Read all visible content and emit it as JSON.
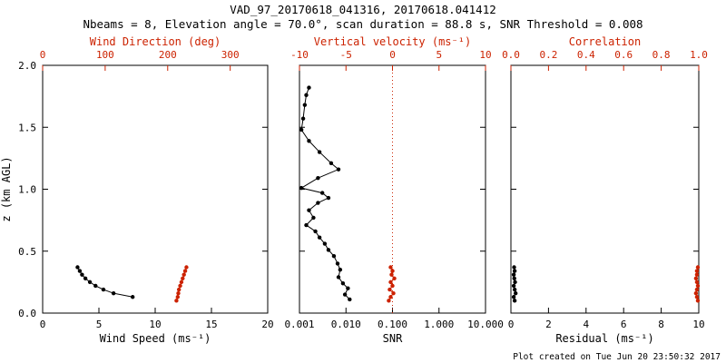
{
  "header": {
    "title": "VAD_97_20170618_041316, 20170618.041412",
    "subtitle": "Nbeams = 8, Elevation angle = 70.0°, scan duration = 88.8 s, SNR Threshold = 0.008"
  },
  "footer": {
    "created": "Plot created on Tue Jun 20 23:50:32 2017"
  },
  "colors": {
    "foreground": "#000000",
    "accent": "#cc2200",
    "background": "#ffffff"
  },
  "chart_data": [
    {
      "type": "scatter",
      "name": "wind-speed-direction-profile",
      "ylabel": "z (km AGL)",
      "ylim": [
        0.0,
        2.0
      ],
      "yticks": [
        0.0,
        0.5,
        1.0,
        1.5,
        2.0
      ],
      "ytick_labels": [
        "0.0",
        "0.5",
        "1.0",
        "1.5",
        "2.0"
      ],
      "show_ytick_labels": true,
      "bottom_axis": {
        "label": "Wind Speed (ms⁻¹)",
        "lim": [
          0,
          20
        ],
        "scale": "linear",
        "ticks": [
          0,
          5,
          10,
          15,
          20
        ],
        "tick_labels": [
          "0",
          "5",
          "10",
          "15",
          "20"
        ],
        "color": "#000000"
      },
      "top_axis": {
        "label": "Wind Direction (deg)",
        "lim": [
          0,
          360
        ],
        "scale": "linear",
        "ticks": [
          0,
          100,
          200,
          300
        ],
        "tick_labels": [
          "0",
          "100",
          "200",
          "300"
        ],
        "color": "#cc2200"
      },
      "series": [
        {
          "name": "wind-speed",
          "axis": "bottom",
          "color": "#000000",
          "points": [
            [
              8.0,
              0.13
            ],
            [
              6.3,
              0.16
            ],
            [
              5.4,
              0.19
            ],
            [
              4.7,
              0.22
            ],
            [
              4.2,
              0.25
            ],
            [
              3.8,
              0.28
            ],
            [
              3.5,
              0.31
            ],
            [
              3.3,
              0.34
            ],
            [
              3.1,
              0.37
            ]
          ]
        },
        {
          "name": "wind-direction",
          "axis": "top",
          "color": "#cc2200",
          "points": [
            [
              214,
              0.1
            ],
            [
              216,
              0.13
            ],
            [
              217,
              0.16
            ],
            [
              218,
              0.19
            ],
            [
              220,
              0.22
            ],
            [
              222,
              0.25
            ],
            [
              224,
              0.28
            ],
            [
              226,
              0.31
            ],
            [
              228,
              0.34
            ],
            [
              230,
              0.37
            ]
          ]
        }
      ]
    },
    {
      "type": "scatter",
      "name": "snr-vertical-velocity-profile",
      "ylabel": "",
      "ylim": [
        0.0,
        2.0
      ],
      "yticks": [
        0.0,
        0.5,
        1.0,
        1.5,
        2.0
      ],
      "ytick_labels": [
        "0.0",
        "0.5",
        "1.0",
        "1.5",
        "2.0"
      ],
      "show_ytick_labels": false,
      "bottom_axis": {
        "label": "SNR",
        "lim": [
          0.001,
          10.0
        ],
        "scale": "log",
        "ticks": [
          0.001,
          0.01,
          0.1,
          1.0,
          10.0
        ],
        "tick_labels": [
          "0.001",
          "0.010",
          "0.100",
          "1.000",
          "10.000"
        ],
        "color": "#000000"
      },
      "top_axis": {
        "label": "Vertical velocity (ms⁻¹)",
        "lim": [
          -10,
          10
        ],
        "scale": "linear",
        "ticks": [
          -10,
          -5,
          0,
          5,
          10
        ],
        "tick_labels": [
          "-10",
          "-5",
          "0",
          "5",
          "10"
        ],
        "color": "#cc2200"
      },
      "refline": {
        "axis": "top",
        "value": 0.0,
        "style": "dotted",
        "color": "#cc2200"
      },
      "series": [
        {
          "name": "snr",
          "axis": "bottom",
          "color": "#000000",
          "points": [
            [
              0.012,
              0.11
            ],
            [
              0.0095,
              0.15
            ],
            [
              0.011,
              0.2
            ],
            [
              0.0086,
              0.24
            ],
            [
              0.0069,
              0.29
            ],
            [
              0.0075,
              0.35
            ],
            [
              0.0066,
              0.4
            ],
            [
              0.0055,
              0.46
            ],
            [
              0.0042,
              0.51
            ],
            [
              0.0035,
              0.56
            ],
            [
              0.0027,
              0.61
            ],
            [
              0.0022,
              0.66
            ],
            [
              0.0014,
              0.71
            ],
            [
              0.002,
              0.77
            ],
            [
              0.0016,
              0.83
            ],
            [
              0.0025,
              0.89
            ],
            [
              0.0042,
              0.93
            ],
            [
              0.0031,
              0.97
            ],
            [
              0.0011,
              1.01
            ],
            [
              0.0025,
              1.09
            ],
            [
              0.0069,
              1.16
            ],
            [
              0.0048,
              1.21
            ],
            [
              0.0027,
              1.3
            ],
            [
              0.0016,
              1.39
            ],
            [
              0.0011,
              1.48
            ],
            [
              0.0012,
              1.57
            ],
            [
              0.0013,
              1.68
            ],
            [
              0.0014,
              1.76
            ],
            [
              0.0016,
              1.82
            ]
          ]
        },
        {
          "name": "vertical-velocity",
          "axis": "top",
          "color": "#cc2200",
          "points": [
            [
              -0.4,
              0.1
            ],
            [
              -0.2,
              0.13
            ],
            [
              0.1,
              0.16
            ],
            [
              -0.3,
              0.19
            ],
            [
              0.0,
              0.22
            ],
            [
              -0.2,
              0.25
            ],
            [
              0.2,
              0.28
            ],
            [
              -0.1,
              0.31
            ],
            [
              0.0,
              0.34
            ],
            [
              -0.2,
              0.37
            ]
          ]
        }
      ]
    },
    {
      "type": "scatter",
      "name": "residual-correlation-profile",
      "ylabel": "",
      "ylim": [
        0.0,
        2.0
      ],
      "yticks": [
        0.0,
        0.5,
        1.0,
        1.5,
        2.0
      ],
      "ytick_labels": [
        "0.0",
        "0.5",
        "1.0",
        "1.5",
        "2.0"
      ],
      "show_ytick_labels": false,
      "bottom_axis": {
        "label": "Residual (ms⁻¹)",
        "lim": [
          0,
          10
        ],
        "scale": "linear",
        "ticks": [
          0,
          2,
          4,
          6,
          8,
          10
        ],
        "tick_labels": [
          "0",
          "2",
          "4",
          "6",
          "8",
          "10"
        ],
        "color": "#000000"
      },
      "top_axis": {
        "label": "Correlation",
        "lim": [
          0.0,
          1.0
        ],
        "scale": "linear",
        "ticks": [
          0.0,
          0.2,
          0.4,
          0.6,
          0.8,
          1.0
        ],
        "tick_labels": [
          "0.0",
          "0.2",
          "0.4",
          "0.6",
          "0.8",
          "1.0"
        ],
        "color": "#cc2200"
      },
      "series": [
        {
          "name": "residual",
          "axis": "bottom",
          "color": "#000000",
          "points": [
            [
              0.2,
              0.1
            ],
            [
              0.15,
              0.13
            ],
            [
              0.25,
              0.16
            ],
            [
              0.2,
              0.19
            ],
            [
              0.15,
              0.22
            ],
            [
              0.22,
              0.25
            ],
            [
              0.18,
              0.28
            ],
            [
              0.15,
              0.31
            ],
            [
              0.2,
              0.34
            ],
            [
              0.17,
              0.37
            ]
          ]
        },
        {
          "name": "correlation",
          "axis": "top",
          "color": "#cc2200",
          "points": [
            [
              0.995,
              0.1
            ],
            [
              0.99,
              0.13
            ],
            [
              0.985,
              0.16
            ],
            [
              0.99,
              0.19
            ],
            [
              0.995,
              0.22
            ],
            [
              0.99,
              0.25
            ],
            [
              0.985,
              0.28
            ],
            [
              0.99,
              0.31
            ],
            [
              0.99,
              0.34
            ],
            [
              0.995,
              0.37
            ]
          ]
        }
      ]
    }
  ]
}
